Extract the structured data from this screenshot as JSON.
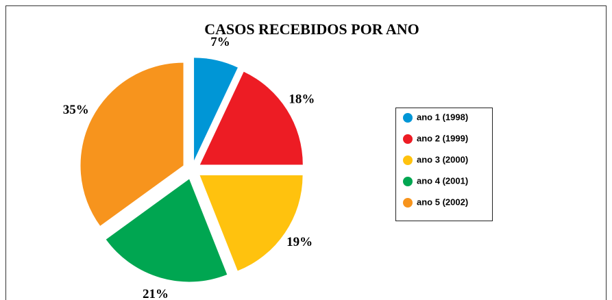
{
  "chart_data": {
    "type": "pie",
    "title": "CASOS RECEBIDOS POR ANO",
    "categories": [
      "ano 1 (1998)",
      "ano 2 (1999)",
      "ano 3 (2000)",
      "ano 4 (2001)",
      "ano 5 (2002)"
    ],
    "values": [
      7,
      18,
      19,
      21,
      35
    ],
    "value_labels": [
      "7%",
      "18%",
      "19%",
      "21%",
      "35%"
    ],
    "colors": [
      "#0096d6",
      "#ed1c24",
      "#ffc20e",
      "#00a651",
      "#f7941d"
    ],
    "legend": "right"
  }
}
